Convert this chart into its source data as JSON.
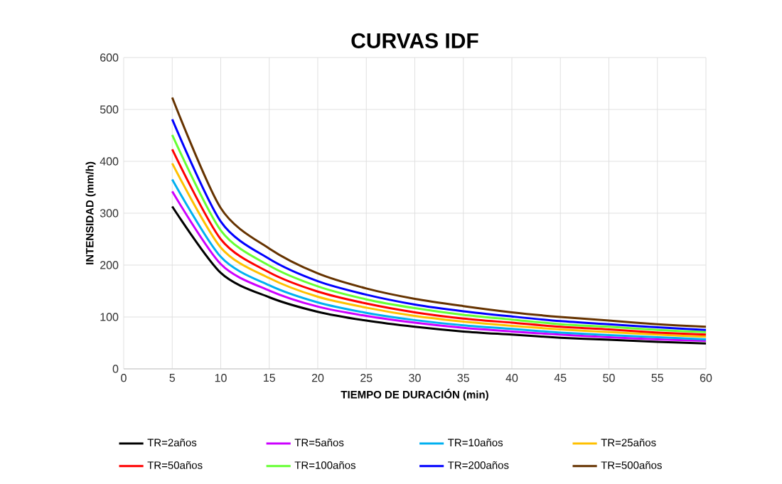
{
  "chart_data": {
    "type": "line",
    "title": "CURVAS IDF",
    "xlabel": "TIEMPO DE DURACIÓN (min)",
    "ylabel": "INTENSIDAD (mm/h)",
    "x": [
      5,
      10,
      15,
      20,
      25,
      30,
      35,
      40,
      45,
      50,
      55,
      60
    ],
    "series": [
      {
        "name": "TR=2años",
        "color": "#000000",
        "values": [
          313,
          185,
          138,
          110,
          93,
          81,
          72,
          66,
          60,
          56,
          52,
          49
        ]
      },
      {
        "name": "TR=5años",
        "color": "#cc00ff",
        "values": [
          342,
          202,
          151,
          120,
          102,
          89,
          79,
          72,
          66,
          61,
          57,
          54
        ]
      },
      {
        "name": "TR=10años",
        "color": "#00b0f0",
        "values": [
          365,
          216,
          161,
          128,
          108,
          94,
          84,
          77,
          70,
          65,
          61,
          57
        ]
      },
      {
        "name": "TR=25años",
        "color": "#ffc000",
        "values": [
          396,
          234,
          175,
          139,
          118,
          102,
          91,
          83,
          76,
          71,
          66,
          62
        ]
      },
      {
        "name": "TR=50años",
        "color": "#ff0000",
        "values": [
          423,
          250,
          186,
          149,
          126,
          109,
          97,
          89,
          81,
          76,
          70,
          66
        ]
      },
      {
        "name": "TR=100años",
        "color": "#66ff33",
        "values": [
          451,
          267,
          199,
          159,
          134,
          117,
          104,
          95,
          86,
          81,
          75,
          71
        ]
      },
      {
        "name": "TR=200años",
        "color": "#0000ff",
        "values": [
          481,
          284,
          212,
          169,
          143,
          124,
          111,
          101,
          92,
          86,
          80,
          75
        ]
      },
      {
        "name": "TR=500años",
        "color": "#663300",
        "values": [
          523,
          310,
          232,
          184,
          155,
          135,
          121,
          109,
          100,
          93,
          86,
          81
        ]
      }
    ],
    "xlim": [
      0,
      60
    ],
    "ylim": [
      0,
      600
    ],
    "xticks": [
      0,
      5,
      10,
      15,
      20,
      25,
      30,
      35,
      40,
      45,
      50,
      55,
      60
    ],
    "yticks": [
      0,
      100,
      200,
      300,
      400,
      500,
      600
    ],
    "grid": true,
    "legend": "bottom"
  }
}
